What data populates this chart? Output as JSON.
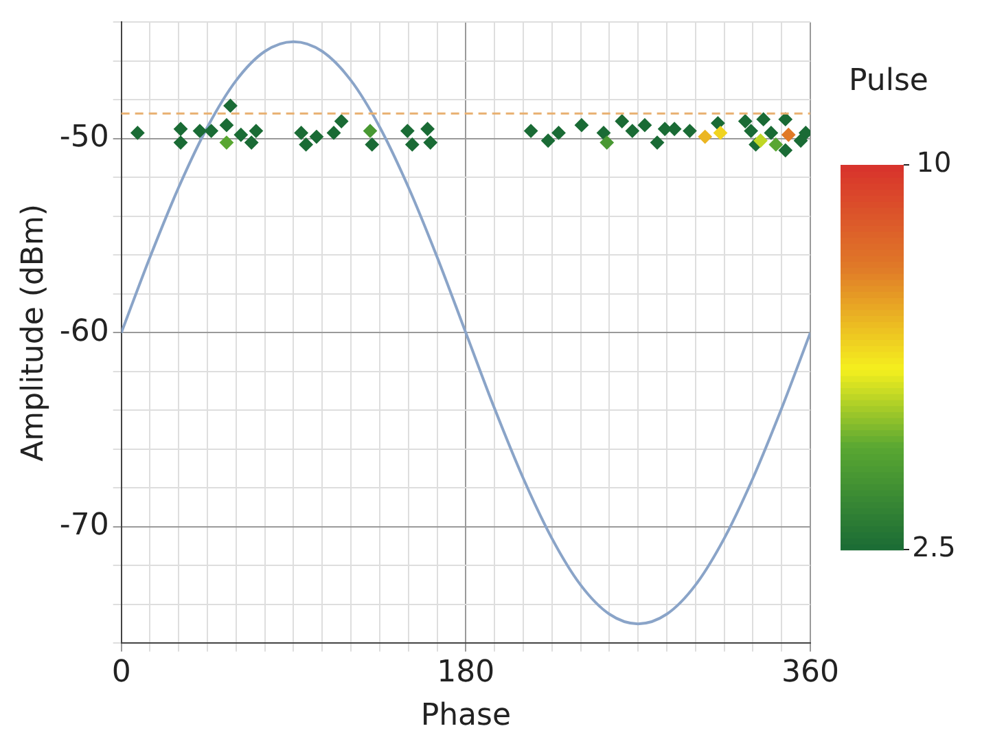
{
  "chart_data": {
    "type": "scatter",
    "xlabel": "Phase",
    "ylabel": "Amplitude (dBm)",
    "clabel": "Pulse",
    "clim": [
      2.5,
      10
    ],
    "cticks": [
      2.5,
      10
    ],
    "xlim": [
      0,
      360
    ],
    "ylim": [
      -76,
      -44
    ],
    "xticks": [
      0,
      {
        "value": 15,
        "label": null
      },
      {
        "value": 30,
        "label": null
      },
      {
        "value": 45,
        "label": null
      },
      {
        "value": 60,
        "label": null
      },
      {
        "value": 75,
        "label": null
      },
      {
        "value": 90,
        "label": null
      },
      {
        "value": 105,
        "label": null
      },
      {
        "value": 120,
        "label": null
      },
      {
        "value": 135,
        "label": null
      },
      {
        "value": 150,
        "label": null
      },
      {
        "value": 165,
        "label": null
      },
      180,
      {
        "value": 195,
        "label": null
      },
      {
        "value": 210,
        "label": null
      },
      {
        "value": 225,
        "label": null
      },
      {
        "value": 240,
        "label": null
      },
      {
        "value": 255,
        "label": null
      },
      {
        "value": 270,
        "label": null
      },
      {
        "value": 285,
        "label": null
      },
      {
        "value": 300,
        "label": null
      },
      {
        "value": 315,
        "label": null
      },
      {
        "value": 330,
        "label": null
      },
      {
        "value": 345,
        "label": null
      },
      360
    ],
    "yticks": [
      {
        "value": -76,
        "label": null
      },
      {
        "value": -74,
        "label": null
      },
      {
        "value": -72,
        "label": null
      },
      -70,
      {
        "value": -68,
        "label": null
      },
      {
        "value": -66,
        "label": null
      },
      {
        "value": -64,
        "label": null
      },
      {
        "value": -62,
        "label": null
      },
      -60,
      {
        "value": -58,
        "label": null
      },
      {
        "value": -56,
        "label": null
      },
      {
        "value": -54,
        "label": null
      },
      {
        "value": -52,
        "label": null
      },
      -50,
      {
        "value": -48,
        "label": null
      },
      {
        "value": -46,
        "label": null
      },
      {
        "value": -44,
        "label": null
      }
    ],
    "grid": true,
    "legend": false,
    "marker": "diamond",
    "ref_lines": [
      {
        "axis": "y",
        "value": -48.7,
        "color": "#e8b070",
        "line_style": "dashed"
      }
    ],
    "series": [
      {
        "type": "line",
        "color": "#8aa4c8",
        "marker": "none",
        "x": [
          0,
          15,
          30,
          45,
          60,
          75,
          90,
          105,
          120,
          135,
          150,
          165,
          180,
          195,
          210,
          225,
          240,
          255,
          270,
          285,
          300,
          315,
          330,
          345,
          360
        ],
        "values": [
          -60,
          -56.1,
          -52.5,
          -49.4,
          -47,
          -45.5,
          -45,
          -45.5,
          -47,
          -49.4,
          -52.5,
          -56.1,
          -60,
          -63.9,
          -67.5,
          -70.6,
          -73,
          -74.5,
          -75,
          -74.5,
          -73,
          -70.6,
          -67.5,
          -63.9,
          -60
        ]
      },
      {
        "x": [
          8.5,
          31,
          31,
          41,
          47,
          57,
          55,
          55,
          62.5,
          70.4,
          68,
          94,
          96.5,
          102,
          111,
          115,
          130,
          131,
          149.5,
          152,
          160,
          161.5,
          214,
          223,
          228.5,
          240.5,
          252,
          253.7,
          261.6,
          267,
          273.5,
          280,
          284,
          289,
          297,
          305,
          311.7,
          313,
          326,
          329,
          331.5,
          335.5,
          339.5,
          342,
          347,
          348.6,
          347,
          357.6,
          355,
          334
        ],
        "values": [
          -49.7,
          -49.5,
          -50.2,
          -49.6,
          -49.6,
          -48.3,
          -49.3,
          -50.2,
          -49.8,
          -49.6,
          -50.2,
          -49.7,
          -50.3,
          -49.9,
          -49.7,
          -49.1,
          -49.6,
          -50.3,
          -49.6,
          -50.3,
          -49.5,
          -50.2,
          -49.6,
          -50.1,
          -49.7,
          -49.3,
          -49.7,
          -50.2,
          -49.1,
          -49.6,
          -49.3,
          -50.2,
          -49.5,
          -49.5,
          -49.6,
          -49.9,
          -49.2,
          -49.7,
          -49.1,
          -49.6,
          -50.3,
          -49,
          -49.7,
          -50.3,
          -49,
          -49.8,
          -50.6,
          -49.7,
          -50.1,
          -50.1
        ],
        "cvalues": [
          2.5,
          2.5,
          2.5,
          2.5,
          2.5,
          2.5,
          2.5,
          4.5,
          2.5,
          2.5,
          2.5,
          2.5,
          2.5,
          2.5,
          2.5,
          2.5,
          4,
          2.5,
          2.5,
          2.5,
          2.5,
          2.5,
          2.5,
          2.5,
          2.5,
          2.5,
          2.5,
          4,
          2.5,
          2.5,
          2.5,
          2.5,
          2.5,
          2.5,
          2.5,
          7,
          2.5,
          6.5,
          2.5,
          2.5,
          2.5,
          2.5,
          2.5,
          4.5,
          2.5,
          8,
          2.5,
          2.5,
          2.5,
          5.5
        ],
        "colors": [
          "#1a6b35",
          "#1a6b35",
          "#1a6b35",
          "#1a6b35",
          "#1a6b35",
          "#1a6b35",
          "#1a6b35",
          "#59a632",
          "#1a6b35",
          "#1a6b35",
          "#1a6b35",
          "#1a6b35",
          "#1a6b35",
          "#1a6b35",
          "#1a6b35",
          "#1a6b35",
          "#499832",
          "#1a6b35",
          "#1a6b35",
          "#1a6b35",
          "#1a6b35",
          "#1a6b35",
          "#1a6b35",
          "#1a6b35",
          "#1a6b35",
          "#1a6b35",
          "#1a6b35",
          "#499832",
          "#1a6b35",
          "#1a6b35",
          "#1a6b35",
          "#1a6b35",
          "#1a6b35",
          "#1a6b35",
          "#1a6b35",
          "#ebb623",
          "#1a6b35",
          "#f0d420",
          "#1a6b35",
          "#1a6b35",
          "#1a6b35",
          "#1a6b35",
          "#1a6b35",
          "#59a632",
          "#1a6b35",
          "#e07a28",
          "#1a6b35",
          "#1a6b35",
          "#1a6b35",
          "#bfd725"
        ]
      }
    ]
  }
}
